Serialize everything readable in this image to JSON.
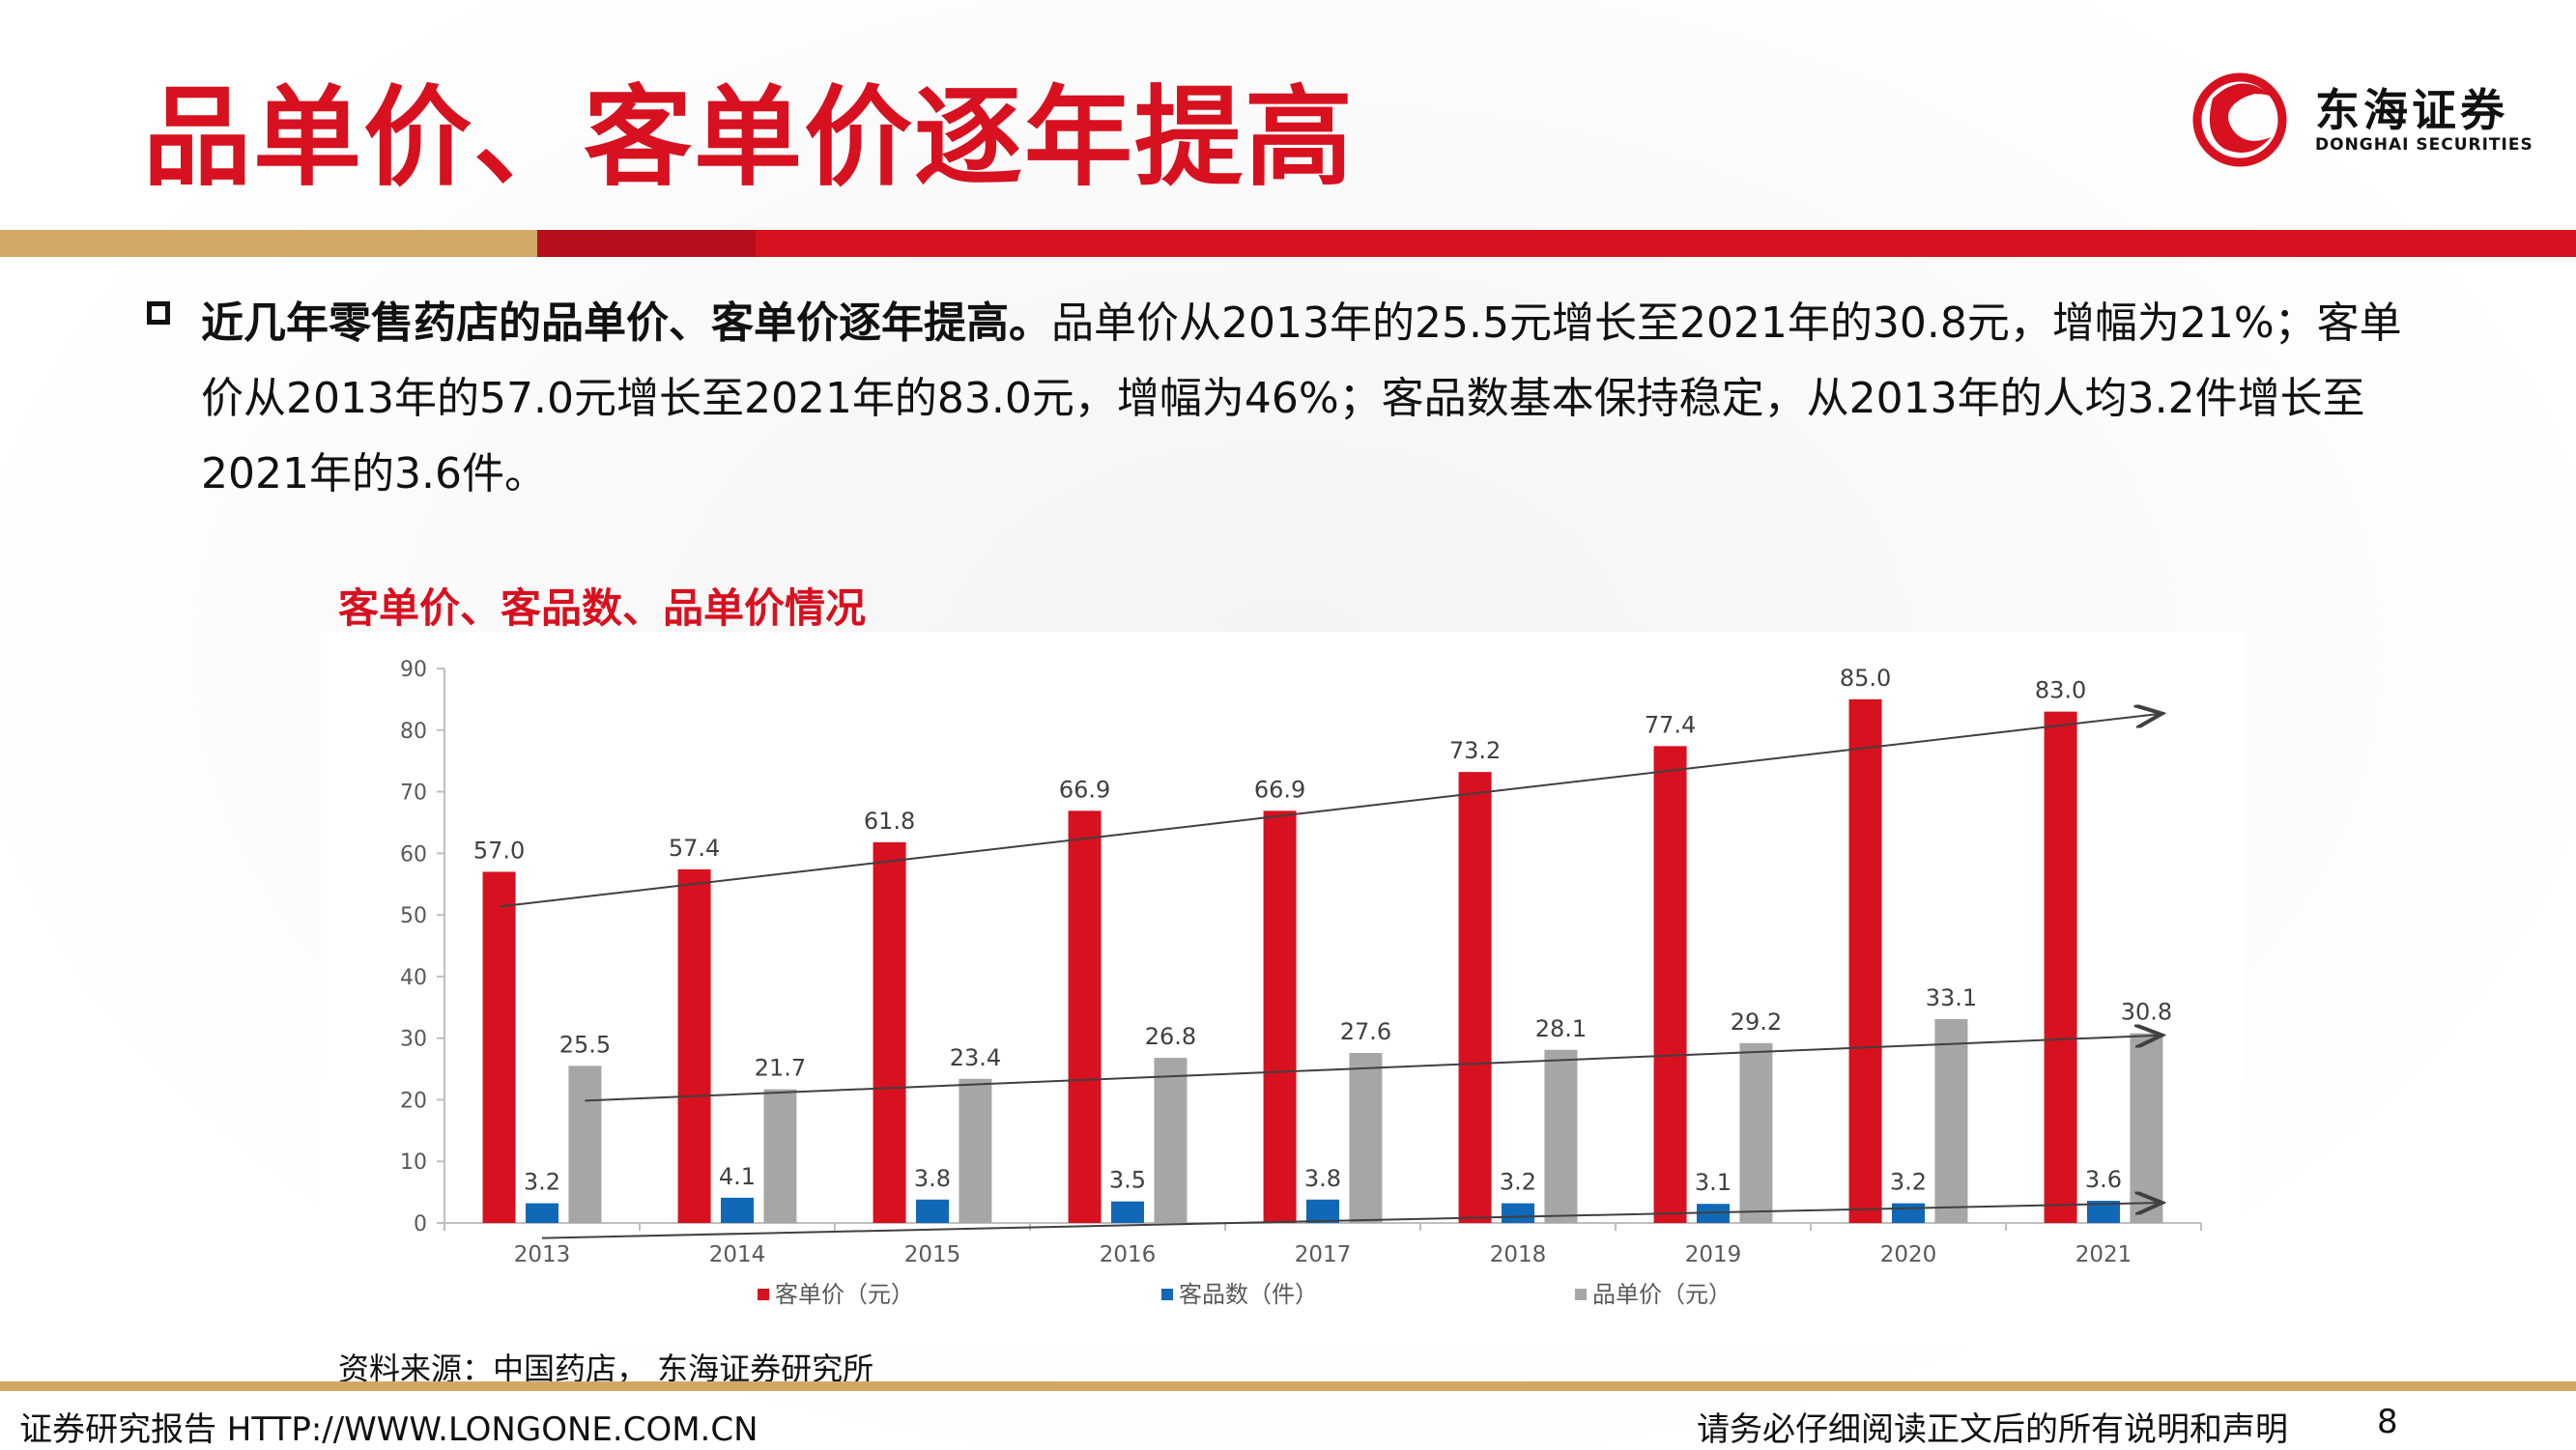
{
  "slide": {
    "title": "品单价、客单价逐年提高",
    "logo": {
      "cn": "东海证券",
      "en": "DONGHAI SECURITIES"
    },
    "paragraph": {
      "bold": "近几年零售药店的品单价、客单价逐年提高。",
      "normal": "品单价从2013年的25.5元增长至2021年的30.8元，增幅为21%；客单价从2013年的57.0元增长至2021年的83.0元，增幅为46%；客品数基本保持稳定，从2013年的人均3.2件增长至2021年的3.6件。"
    },
    "chart_title": "客单价、客品数、品单价情况",
    "source": "资料来源：中国药店， 东海证券研究所",
    "footer": {
      "left": "证券研究报告 HTTP://WWW.LONGONE.COM.CN",
      "right": "请务必仔细阅读正文后的所有说明和声明",
      "page": "8"
    }
  },
  "colors": {
    "red": "#d7111f",
    "blue": "#1068b7",
    "gray": "#a6a6a6",
    "gold": "#d2a866"
  },
  "chart_data": {
    "type": "bar",
    "categories": [
      "2013",
      "2014",
      "2015",
      "2016",
      "2017",
      "2018",
      "2019",
      "2020",
      "2021"
    ],
    "series": [
      {
        "name": "客单价（元）",
        "values": [
          57.0,
          57.4,
          61.8,
          66.9,
          66.9,
          73.2,
          77.4,
          85.0,
          83.0
        ]
      },
      {
        "name": "客品数（件）",
        "values": [
          3.2,
          4.1,
          3.8,
          3.5,
          3.8,
          3.2,
          3.1,
          3.2,
          3.6
        ]
      },
      {
        "name": "品单价（元）",
        "values": [
          25.5,
          21.7,
          23.4,
          26.8,
          27.6,
          28.1,
          29.2,
          33.1,
          30.8
        ]
      }
    ],
    "yticks": [
      0,
      10,
      20,
      30,
      40,
      50,
      60,
      70,
      80,
      90
    ],
    "ylim": [
      0,
      90
    ],
    "legend_position": "bottom",
    "grid": false
  }
}
